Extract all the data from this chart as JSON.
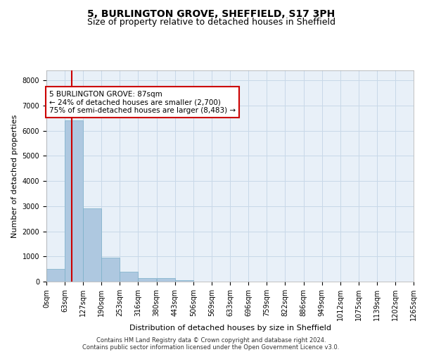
{
  "title": "5, BURLINGTON GROVE, SHEFFIELD, S17 3PH",
  "subtitle": "Size of property relative to detached houses in Sheffield",
  "xlabel": "Distribution of detached houses by size in Sheffield",
  "ylabel": "Number of detached properties",
  "footer_line1": "Contains HM Land Registry data © Crown copyright and database right 2024.",
  "footer_line2": "Contains public sector information licensed under the Open Government Licence v3.0.",
  "bar_color": "#aec8e0",
  "bar_edge_color": "#7aafc8",
  "grid_color": "#c8d8e8",
  "property_line_color": "#cc0000",
  "annotation_box_color": "#cc0000",
  "annotation_line1": "5 BURLINGTON GROVE: 87sqm",
  "annotation_line2": "← 24% of detached houses are smaller (2,700)",
  "annotation_line3": "75% of semi-detached houses are larger (8,483) →",
  "property_size": 87,
  "bin_edges": [
    0,
    63,
    127,
    190,
    253,
    316,
    380,
    443,
    506,
    569,
    633,
    696,
    759,
    822,
    886,
    949,
    1012,
    1075,
    1139,
    1202,
    1265
  ],
  "bin_labels": [
    "0sqm",
    "63sqm",
    "127sqm",
    "190sqm",
    "253sqm",
    "316sqm",
    "380sqm",
    "443sqm",
    "506sqm",
    "569sqm",
    "633sqm",
    "696sqm",
    "759sqm",
    "822sqm",
    "886sqm",
    "949sqm",
    "1012sqm",
    "1075sqm",
    "1139sqm",
    "1202sqm",
    "1265sqm"
  ],
  "bar_heights": [
    500,
    6400,
    2900,
    950,
    380,
    150,
    130,
    60,
    0,
    0,
    0,
    0,
    0,
    0,
    0,
    0,
    0,
    0,
    0,
    0
  ],
  "ylim": [
    0,
    8400
  ],
  "yticks": [
    0,
    1000,
    2000,
    3000,
    4000,
    5000,
    6000,
    7000,
    8000
  ],
  "background_color": "#e8f0f8",
  "title_fontsize": 10,
  "subtitle_fontsize": 9,
  "footer_fontsize": 6,
  "ylabel_fontsize": 8,
  "xlabel_fontsize": 8,
  "tick_fontsize": 7,
  "annot_fontsize": 7.5
}
